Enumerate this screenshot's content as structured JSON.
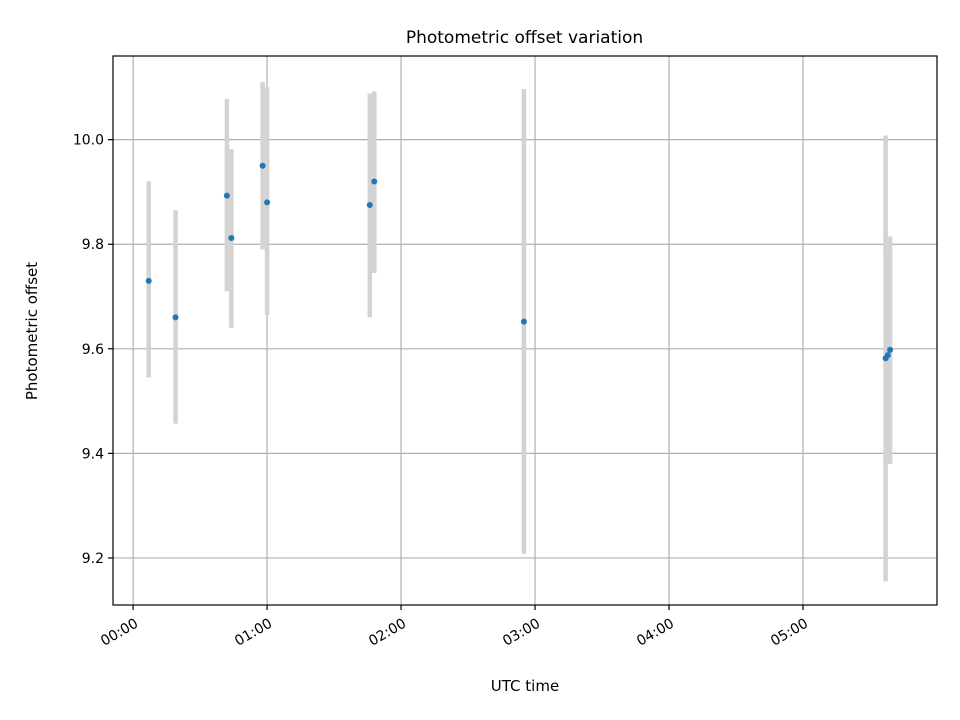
{
  "chart_data": {
    "type": "scatter",
    "title": "Photometric offset variation",
    "xlabel": "UTC time",
    "ylabel": "Photometric offset",
    "x_tick_labels": [
      "00:00",
      "01:00",
      "02:00",
      "03:00",
      "04:00",
      "05:00"
    ],
    "x_tick_values": [
      "00:00",
      "01:00",
      "02:00",
      "03:00",
      "04:00",
      "05:00"
    ],
    "y_tick_labels": [
      "9.2",
      "9.4",
      "9.6",
      "9.8",
      "10.0"
    ],
    "y_tick_values": [
      9.2,
      9.4,
      9.6,
      9.8,
      10.0
    ],
    "xlim": [
      "-00:09",
      "06:00"
    ],
    "ylim": [
      9.11,
      10.16
    ],
    "grid": true,
    "colors": {
      "points": "#1f77b4",
      "errorbars": "#d3d3d3",
      "grid": "#b0b0b0"
    },
    "series": [
      {
        "points": [
          {
            "x": "00:07",
            "y": 9.73,
            "err_low": 9.545,
            "err_high": 9.92
          },
          {
            "x": "00:19",
            "y": 9.66,
            "err_low": 9.457,
            "err_high": 9.865
          },
          {
            "x": "00:42",
            "y": 9.893,
            "err_low": 9.71,
            "err_high": 10.078
          },
          {
            "x": "00:44",
            "y": 9.812,
            "err_low": 9.64,
            "err_high": 9.982
          },
          {
            "x": "00:58",
            "y": 9.95,
            "err_low": 9.79,
            "err_high": 10.11
          },
          {
            "x": "01:00",
            "y": 9.88,
            "err_low": 9.665,
            "err_high": 10.1
          },
          {
            "x": "01:46",
            "y": 9.875,
            "err_low": 9.66,
            "err_high": 10.088
          },
          {
            "x": "01:48",
            "y": 9.92,
            "err_low": 9.745,
            "err_high": 10.092
          },
          {
            "x": "02:55",
            "y": 9.652,
            "err_low": 9.208,
            "err_high": 10.097
          },
          {
            "x": "05:37",
            "y": 9.582,
            "err_low": 9.155,
            "err_high": 10.008
          },
          {
            "x": "05:38",
            "y": 9.588,
            "err_low": 9.4,
            "err_high": 9.775
          },
          {
            "x": "05:39",
            "y": 9.598,
            "err_low": 9.38,
            "err_high": 9.815
          }
        ]
      }
    ]
  }
}
